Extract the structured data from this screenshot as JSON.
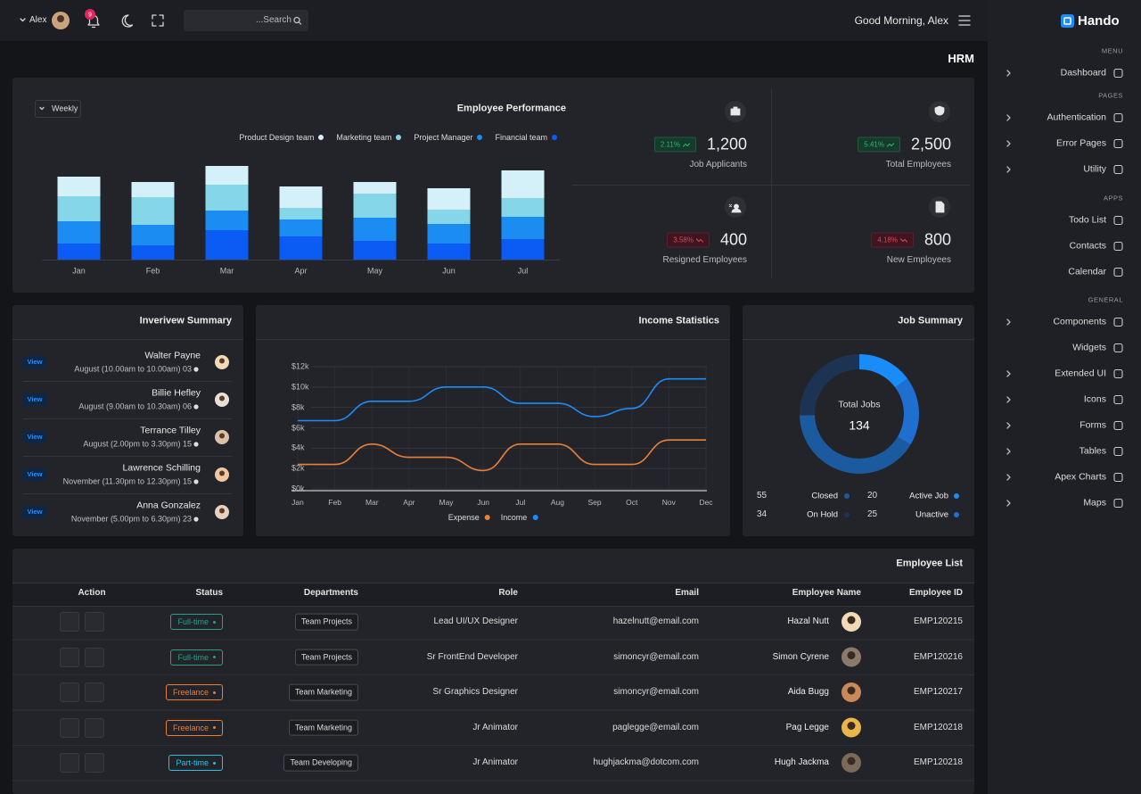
{
  "topbar": {
    "user": "Alex",
    "notifications": 9,
    "search_placeholder": "...Search",
    "greeting": "Good Morning, Alex"
  },
  "sidebar": {
    "brand": "Hando",
    "sections": [
      {
        "title": "MENU",
        "items": [
          "Dashboard"
        ]
      },
      {
        "title": "PAGES",
        "items": [
          "Authentication",
          "Error Pages",
          "Utility"
        ]
      },
      {
        "title": "APPS",
        "items": [
          "Todo List",
          "Contacts",
          "Calendar"
        ]
      },
      {
        "title": "GENERAL",
        "items": [
          "Components",
          "Widgets",
          "Extended UI",
          "Icons",
          "Forms",
          "Tables",
          "Apex Charts",
          "Maps"
        ]
      }
    ]
  },
  "page_title": "HRM",
  "stats": [
    {
      "change": "2.11%",
      "trend": "up",
      "value": "1,200",
      "label": "Job Applicants"
    },
    {
      "change": "5.41%",
      "trend": "up",
      "value": "2,500",
      "label": "Total Employees"
    },
    {
      "change": "3.58%",
      "trend": "down",
      "value": "400",
      "label": "Resigned Employees"
    },
    {
      "change": "4.18%",
      "trend": "down",
      "value": "800",
      "label": "New Employees"
    }
  ],
  "interviews": {
    "title": "Inverivew Summary",
    "button": "View",
    "rows": [
      {
        "name": "Walter Payne",
        "detail": "August (10.00am to 10.00am) 03"
      },
      {
        "name": "Billie Hefley",
        "detail": "August (9.00am to 10.30am) 06"
      },
      {
        "name": "Terrance Tilley",
        "detail": "August (2.00pm to 3.30pm) 15"
      },
      {
        "name": "Lawrence Schilling",
        "detail": "November (11.30pm to 12.30pm) 15"
      },
      {
        "name": "Anna Gonzalez",
        "detail": "November (5.00pm to 6.30pm) 23"
      }
    ]
  },
  "chart_data": [
    {
      "type": "bar",
      "stacked": true,
      "title": "Employee Performance",
      "filter": "Weekly",
      "categories": [
        "Jan",
        "Feb",
        "Mar",
        "Apr",
        "May",
        "Jun",
        "Jul"
      ],
      "series": [
        {
          "name": "Product Design team",
          "color": "#d4f1fa",
          "values": [
            22,
            17,
            21,
            24,
            13,
            24,
            31
          ]
        },
        {
          "name": "Marketing team",
          "color": "#86d6ea",
          "values": [
            28,
            31,
            29,
            13,
            27,
            16,
            21
          ]
        },
        {
          "name": "Project Manager",
          "color": "#1b8cf2",
          "values": [
            25,
            23,
            22,
            19,
            26,
            22,
            25
          ]
        },
        {
          "name": "Financial team",
          "color": "#0a5cf5",
          "values": [
            18,
            16,
            33,
            26,
            21,
            18,
            23
          ]
        }
      ]
    },
    {
      "type": "line",
      "title": "Income Statistics",
      "categories": [
        "Jan",
        "Feb",
        "Mar",
        "Apr",
        "May",
        "Jun",
        "Jul",
        "Aug",
        "Sep",
        "Oct",
        "Nov",
        "Dec"
      ],
      "series": [
        {
          "name": "Expense",
          "color": "#e8803a",
          "values": [
            2.4,
            2.4,
            4.4,
            3.1,
            3.1,
            1.8,
            4.4,
            4.4,
            2.4,
            2.4,
            4.8,
            4.8
          ]
        },
        {
          "name": "Income",
          "color": "#1d8cf8",
          "values": [
            6.7,
            6.7,
            8.6,
            8.6,
            10,
            10,
            8.4,
            8.4,
            7.1,
            7.9,
            10.8,
            10.8
          ]
        }
      ],
      "ylim": [
        0,
        12
      ],
      "yticks": [
        {
          "value": 0,
          "label": "$0k"
        },
        {
          "value": 2,
          "label": "$2k"
        },
        {
          "value": 4,
          "label": "$4k"
        },
        {
          "value": 6,
          "label": "$6k"
        },
        {
          "value": 8,
          "label": "$8k"
        },
        {
          "value": 10,
          "label": "$10k"
        },
        {
          "value": 12,
          "label": "$12k"
        }
      ],
      "grid": true
    },
    {
      "type": "pie",
      "donut": true,
      "title": "Job Summary",
      "center_label": "Total Jobs",
      "total": 134,
      "categories": [
        "Active Job",
        "Unactive",
        "Closed",
        "On Hold"
      ],
      "values": [
        20,
        25,
        55,
        34
      ],
      "colors": [
        "#1a8cf7",
        "#1f6fd0",
        "#1c5aa0",
        "#1d3354"
      ]
    }
  ],
  "employees": {
    "title": "Employee List",
    "columns": [
      "Action",
      "Status",
      "Departments",
      "Role",
      "Email",
      "Employee Name",
      "Employee ID"
    ],
    "rows": [
      {
        "status": "Full-time",
        "status_color": "#2a9e88",
        "department": "Team Projects",
        "role": "Lead UI/UX Designer",
        "email": "hazelnutt@email.com",
        "name": "Hazal Nutt",
        "id": "EMP120215"
      },
      {
        "status": "Full-time",
        "status_color": "#2a9e88",
        "department": "Team Projects",
        "role": "Sr FrontEnd Developer",
        "email": "simoncyr@email.com",
        "name": "Simon Cyrene",
        "id": "EMP120216"
      },
      {
        "status": "Freelance",
        "status_color": "#f07b35",
        "department": "Team Marketing",
        "role": "Sr Graphics Designer",
        "email": "simoncyr@email.com",
        "name": "Aida Bugg",
        "id": "EMP120217"
      },
      {
        "status": "Freelance",
        "status_color": "#f07b35",
        "department": "Team Marketing",
        "role": "Jr Animator",
        "email": "paglegge@email.com",
        "name": "Pag Legge",
        "id": "EMP120218"
      },
      {
        "status": "Part-time",
        "status_color": "#27c0e8",
        "department": "Team Developing",
        "role": "Jr Animator",
        "email": "hughjackma@dotcom.com",
        "name": "Hugh Jackma",
        "id": "EMP120218"
      }
    ]
  }
}
